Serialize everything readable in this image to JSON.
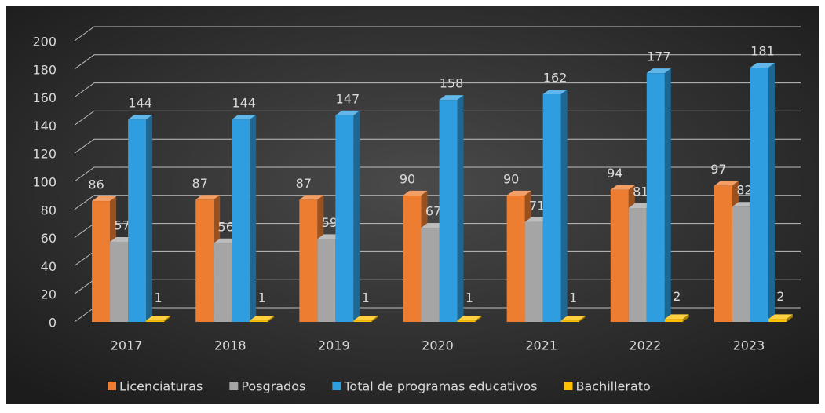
{
  "chart_data": {
    "type": "bar3d",
    "categories": [
      "2017",
      "2018",
      "2019",
      "2020",
      "2021",
      "2022",
      "2023"
    ],
    "series": [
      {
        "name": "Licenciaturas",
        "color": "#ed7d31",
        "values": [
          86,
          87,
          87,
          90,
          90,
          94,
          97
        ]
      },
      {
        "name": "Posgrados",
        "color": "#a5a5a5",
        "values": [
          57,
          56,
          59,
          67,
          71,
          81,
          82
        ]
      },
      {
        "name": "Total de programas educativos",
        "color": "#2e9ee0",
        "values": [
          144,
          144,
          147,
          158,
          162,
          177,
          181
        ]
      },
      {
        "name": "Bachillerato",
        "color": "#ffc000",
        "values": [
          1,
          1,
          1,
          1,
          1,
          2,
          2
        ]
      }
    ],
    "ylim": [
      0,
      200
    ],
    "yticks": [
      0,
      20,
      40,
      60,
      80,
      100,
      120,
      140,
      160,
      180,
      200
    ],
    "grid": true,
    "legend": "bottom"
  }
}
